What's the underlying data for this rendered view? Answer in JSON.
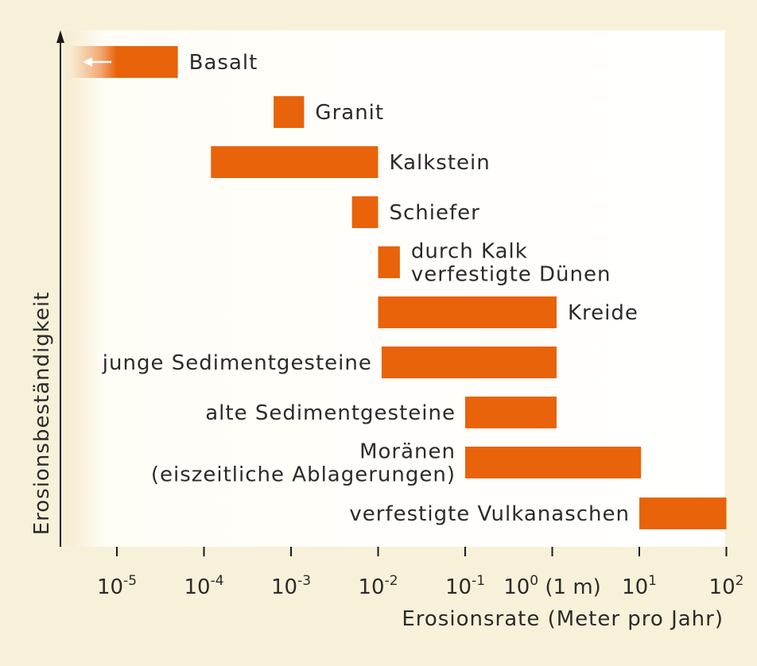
{
  "chart_data": {
    "type": "bar",
    "orientation": "horizontal-range",
    "xlabel": "Erosionsrate (Meter pro Jahr)",
    "ylabel": "Erosionsbeständigkeit",
    "x_scale": "log10",
    "xlim_exponent": [
      -5,
      2
    ],
    "x_ticks": [
      {
        "base": "10",
        "exp": "-5",
        "suffix": ""
      },
      {
        "base": "10",
        "exp": "-4",
        "suffix": ""
      },
      {
        "base": "10",
        "exp": "-3",
        "suffix": ""
      },
      {
        "base": "10",
        "exp": "-2",
        "suffix": ""
      },
      {
        "base": "10",
        "exp": "-1",
        "suffix": ""
      },
      {
        "base": "10",
        "exp": "0",
        "suffix": " (1 m)"
      },
      {
        "base": "10",
        "exp": "1",
        "suffix": ""
      },
      {
        "base": "10",
        "exp": "2",
        "suffix": ""
      }
    ],
    "bar_color": "#e8630a",
    "series": [
      {
        "label": [
          "Basalt"
        ],
        "range_exp": [
          -6,
          -4.3
        ],
        "extends_left": true,
        "label_side": "right"
      },
      {
        "label": [
          "Granit"
        ],
        "range_exp": [
          -3.2,
          -2.85
        ],
        "label_side": "right"
      },
      {
        "label": [
          "Kalkstein"
        ],
        "range_exp": [
          -3.92,
          -2.0
        ],
        "label_side": "right"
      },
      {
        "label": [
          "Schiefer"
        ],
        "range_exp": [
          -2.3,
          -2.0
        ],
        "label_side": "right"
      },
      {
        "label": [
          "durch Kalk",
          "verfestigte Dünen"
        ],
        "range_exp": [
          -2.0,
          -1.75
        ],
        "label_side": "right"
      },
      {
        "label": [
          "Kreide"
        ],
        "range_exp": [
          -2.0,
          0.05
        ],
        "label_side": "right"
      },
      {
        "label": [
          "junge Sedimentgesteine"
        ],
        "range_exp": [
          -1.96,
          0.05
        ],
        "label_side": "left"
      },
      {
        "label": [
          "alte Sedimentgesteine"
        ],
        "range_exp": [
          -1.0,
          0.05
        ],
        "label_side": "left"
      },
      {
        "label": [
          "Moränen",
          "(eiszeitliche Ablagerungen)"
        ],
        "range_exp": [
          -1.0,
          1.02
        ],
        "label_side": "left"
      },
      {
        "label": [
          "verfestigte Vulkanaschen"
        ],
        "range_exp": [
          1.0,
          2.0
        ],
        "label_side": "left"
      }
    ]
  }
}
